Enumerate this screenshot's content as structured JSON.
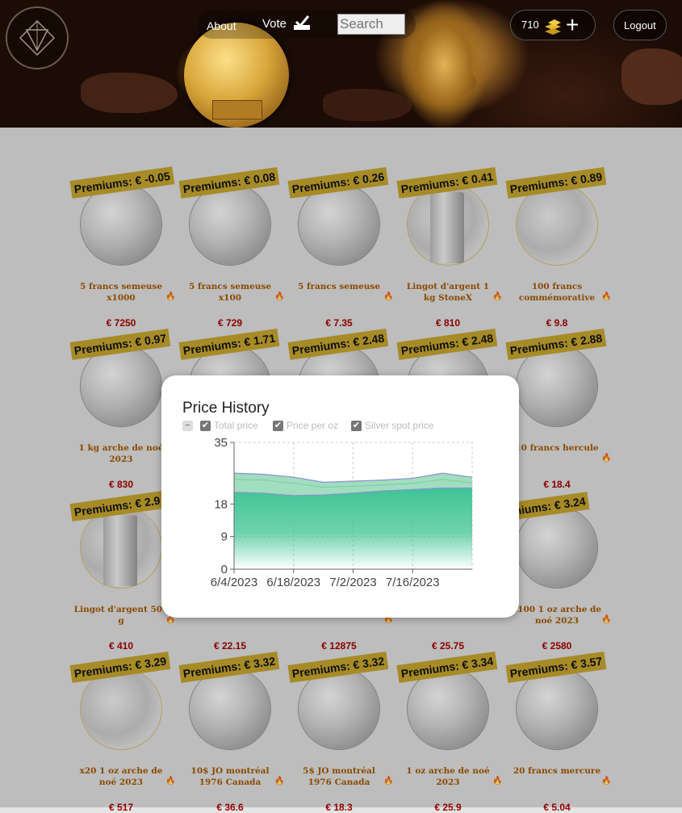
{
  "header": {
    "nav": {
      "about": "About",
      "vote": "Vote",
      "search_placeholder": "Search"
    },
    "credits": {
      "value": "710",
      "add": "+"
    },
    "logout": "Logout"
  },
  "cards": [
    {
      "premium": "Premiums: € -0.05",
      "name": "5 francs semeuse x1000",
      "price": "€ 7250",
      "type": "coin"
    },
    {
      "premium": "Premiums: € 0.08",
      "name": "5 francs semeuse x100",
      "price": "€ 729",
      "type": "coin"
    },
    {
      "premium": "Premiums: € 0.26",
      "name": "5 francs semeuse",
      "price": "€ 7.35",
      "type": "coin"
    },
    {
      "premium": "Premiums: € 0.41",
      "name": "Lingot d'argent 1 kg StoneX",
      "price": "€ 810",
      "type": "bar"
    },
    {
      "premium": "Premiums: € 0.89",
      "name": "100 francs commémorative",
      "price": "€ 9.8",
      "type": "ring"
    },
    {
      "premium": "Premiums: € 0.97",
      "name": "1 kg arche de noé 2023",
      "price": "€ 830",
      "type": "coin"
    },
    {
      "premium": "Premiums: € 1.71",
      "name": "",
      "price": "",
      "type": "coin"
    },
    {
      "premium": "Premiums: € 2.48",
      "name": "",
      "price": "",
      "type": "coin"
    },
    {
      "premium": "Premiums: € 2.48",
      "name": "",
      "price": "",
      "type": "coin"
    },
    {
      "premium": "Premiums: € 2.88",
      "name": "10 francs hercule",
      "price": "€ 18.4",
      "type": "coin"
    },
    {
      "premium": "Premiums: € 2.9",
      "name": "Lingot d'argent 500 g",
      "price": "€ 410",
      "type": "bar"
    },
    {
      "premium": "",
      "name": "",
      "price": "€ 22.15",
      "type": "none"
    },
    {
      "premium": "",
      "name": "2023",
      "price": "€ 12875",
      "type": "none"
    },
    {
      "premium": "",
      "name": "",
      "price": "€ 25.75",
      "type": "none"
    },
    {
      "premium": "emiums: € 3.24",
      "name": "x100 1 oz arche de noé 2023",
      "price": "€ 2580",
      "type": "coin"
    },
    {
      "premium": "Premiums: € 3.29",
      "name": "x20 1 oz arche de noé 2023",
      "price": "€ 517",
      "type": "ring"
    },
    {
      "premium": "Premiums: € 3.32",
      "name": "10$ JO montréal 1976 Canada",
      "price": "€ 36.6",
      "type": "coin"
    },
    {
      "premium": "Premiums: € 3.32",
      "name": "5$ JO montréal 1976 Canada",
      "price": "€ 18.3",
      "type": "coin"
    },
    {
      "premium": "Premiums: € 3.34",
      "name": "1 oz arche de noé 2023",
      "price": "€ 25.9",
      "type": "coin"
    },
    {
      "premium": "Premiums: € 3.57",
      "name": "20 francs mercure",
      "price": "€ 5.04",
      "type": "coin"
    }
  ],
  "modal": {
    "title": "Price History",
    "collapse": "−",
    "legend": [
      "Total price",
      "Price per oz",
      "Silver spot price"
    ],
    "colors": {
      "total": "#8fd8b4",
      "per_oz": "#8a8fd0",
      "spot": "#3fc394"
    }
  },
  "chart_data": {
    "type": "area",
    "x": [
      "6/4/2023",
      "6/11/2023",
      "6/18/2023",
      "6/25/2023",
      "7/2/2023",
      "7/9/2023",
      "7/16/2023",
      "7/23/2023",
      "7/30/2023"
    ],
    "series": [
      {
        "name": "Total price",
        "values": [
          26.5,
          26.2,
          25.4,
          24.0,
          24.3,
          24.6,
          25.1,
          26.5,
          25.4
        ]
      },
      {
        "name": "Price per oz",
        "values": [
          24.8,
          24.6,
          23.7,
          22.6,
          22.9,
          23.2,
          23.7,
          24.8,
          23.8
        ]
      },
      {
        "name": "Silver spot price",
        "values": [
          21.2,
          21.0,
          20.3,
          20.5,
          21.0,
          21.6,
          22.0,
          22.4,
          22.4
        ]
      }
    ],
    "xticks": [
      "6/4/2023",
      "6/18/2023",
      "7/2/2023",
      "7/16/2023"
    ],
    "yticks": [
      "35",
      "18",
      "9",
      "0"
    ],
    "ylim": [
      0,
      35
    ]
  }
}
